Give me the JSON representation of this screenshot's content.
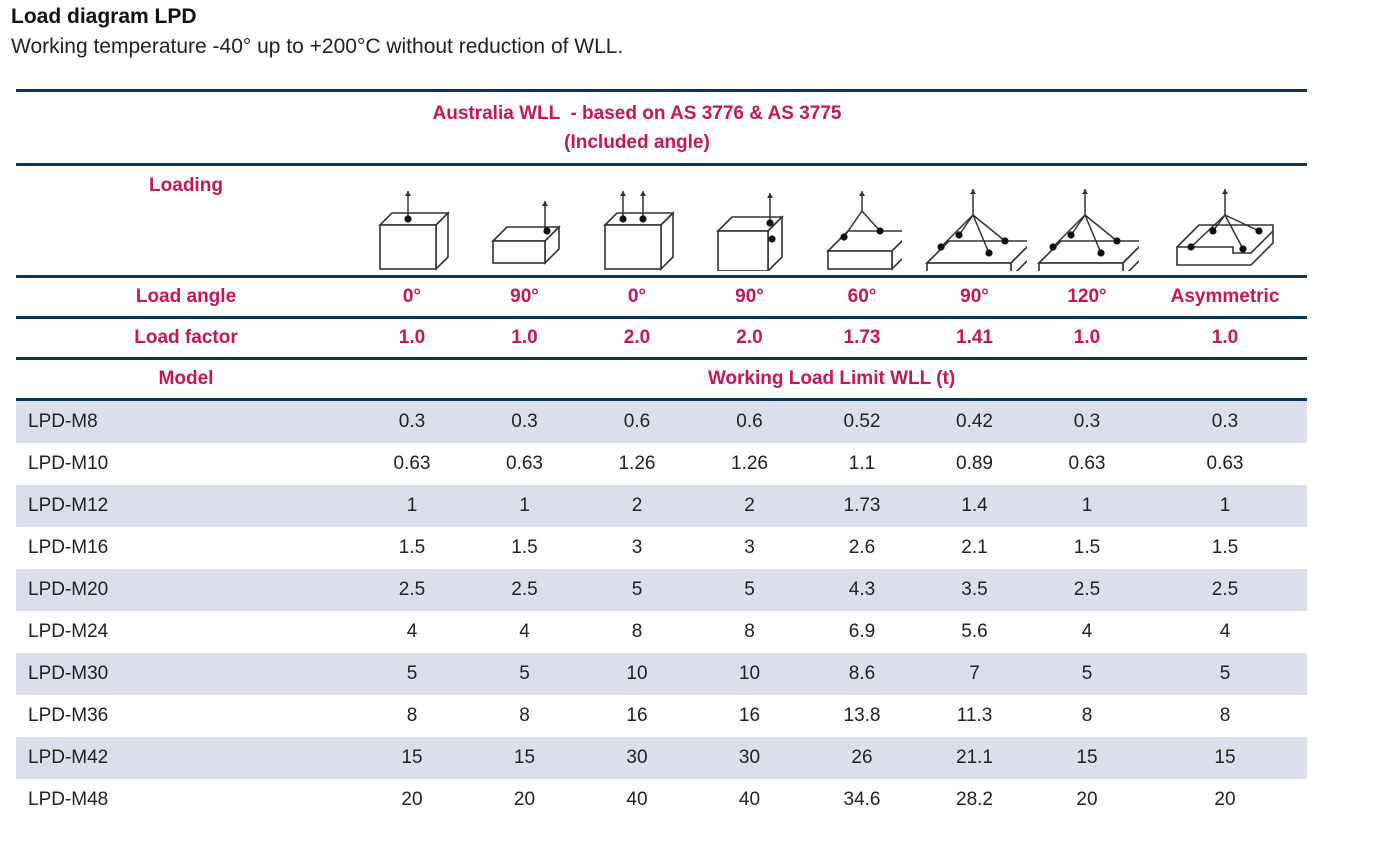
{
  "heading": {
    "title": "Load diagram LPD",
    "subtitle": "Working temperature -40° up to +200°C without reduction of WLL."
  },
  "table": {
    "header_line1": "Australia WLL  - based on AS 3776 & AS 3775",
    "header_line2": "(Included angle)",
    "loading_label": "Loading",
    "load_angle_label": "Load angle",
    "load_factor_label": "Load factor",
    "model_label": "Model",
    "wll_label": "Working Load Limit WLL (t)",
    "loading_icons": [
      "single-point-vertical-cube-icon",
      "single-point-side-slab-icon",
      "two-point-vertical-cube-icon",
      "two-point-side-cube-icon",
      "two-leg-sling-slab-icon",
      "four-leg-sling-slab-icon",
      "four-leg-sling-slab-icon",
      "asymmetric-sling-stepped-slab-icon"
    ],
    "load_angles": [
      "0°",
      "90°",
      "0°",
      "90°",
      "60°",
      "90°",
      "120°",
      "Asymmetric"
    ],
    "load_factors": [
      "1.0",
      "1.0",
      "2.0",
      "2.0",
      "1.73",
      "1.41",
      "1.0",
      "1.0"
    ],
    "rows": [
      {
        "model": "LPD-M8",
        "values": [
          "0.3",
          "0.3",
          "0.6",
          "0.6",
          "0.52",
          "0.42",
          "0.3",
          "0.3"
        ]
      },
      {
        "model": "LPD-M10",
        "values": [
          "0.63",
          "0.63",
          "1.26",
          "1.26",
          "1.1",
          "0.89",
          "0.63",
          "0.63"
        ]
      },
      {
        "model": "LPD-M12",
        "values": [
          "1",
          "1",
          "2",
          "2",
          "1.73",
          "1.4",
          "1",
          "1"
        ]
      },
      {
        "model": "LPD-M16",
        "values": [
          "1.5",
          "1.5",
          "3",
          "3",
          "2.6",
          "2.1",
          "1.5",
          "1.5"
        ]
      },
      {
        "model": "LPD-M20",
        "values": [
          "2.5",
          "2.5",
          "5",
          "5",
          "4.3",
          "3.5",
          "2.5",
          "2.5"
        ]
      },
      {
        "model": "LPD-M24",
        "values": [
          "4",
          "4",
          "8",
          "8",
          "6.9",
          "5.6",
          "4",
          "4"
        ]
      },
      {
        "model": "LPD-M30",
        "values": [
          "5",
          "5",
          "10",
          "10",
          "8.6",
          "7",
          "5",
          "5"
        ]
      },
      {
        "model": "LPD-M36",
        "values": [
          "8",
          "8",
          "16",
          "16",
          "13.8",
          "11.3",
          "8",
          "8"
        ]
      },
      {
        "model": "LPD-M42",
        "values": [
          "15",
          "15",
          "30",
          "30",
          "26",
          "21.1",
          "15",
          "15"
        ]
      },
      {
        "model": "LPD-M48",
        "values": [
          "20",
          "20",
          "40",
          "40",
          "34.6",
          "28.2",
          "20",
          "20"
        ]
      }
    ]
  },
  "colors": {
    "accent_red": "#c8164e",
    "rule_navy": "#0b3754",
    "row_shade": "#dcdfeb"
  }
}
